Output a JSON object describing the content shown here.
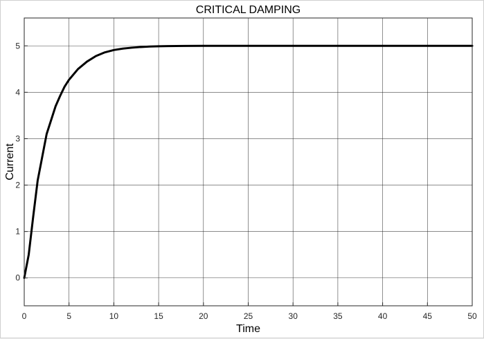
{
  "chart_data": {
    "type": "line",
    "title": "CRITICAL DAMPING",
    "xlabel": "Time",
    "ylabel": "Current",
    "xlim": [
      0,
      50
    ],
    "ylim": [
      -0.6,
      5.6
    ],
    "xticks": [
      0,
      5,
      10,
      15,
      20,
      25,
      30,
      35,
      40,
      45,
      50
    ],
    "yticks": [
      0,
      1,
      2,
      3,
      4,
      5
    ],
    "grid": true,
    "legend": "none",
    "series": [
      {
        "color": "#000000",
        "x": [
          0,
          0.5,
          1,
          1.5,
          2,
          2.5,
          3,
          3.5,
          4,
          4.5,
          5,
          6,
          7,
          8,
          9,
          10,
          11,
          12,
          13,
          14,
          15,
          16,
          18,
          20,
          25,
          30,
          35,
          40,
          45,
          50
        ],
        "y": [
          0,
          0.5,
          1.32,
          2.1,
          2.6,
          3.1,
          3.4,
          3.7,
          3.92,
          4.12,
          4.27,
          4.5,
          4.66,
          4.78,
          4.86,
          4.91,
          4.94,
          4.96,
          4.975,
          4.985,
          4.99,
          4.995,
          4.998,
          5.0,
          5.0,
          5.0,
          5.0,
          5.0,
          5.0,
          5.0
        ]
      }
    ]
  }
}
